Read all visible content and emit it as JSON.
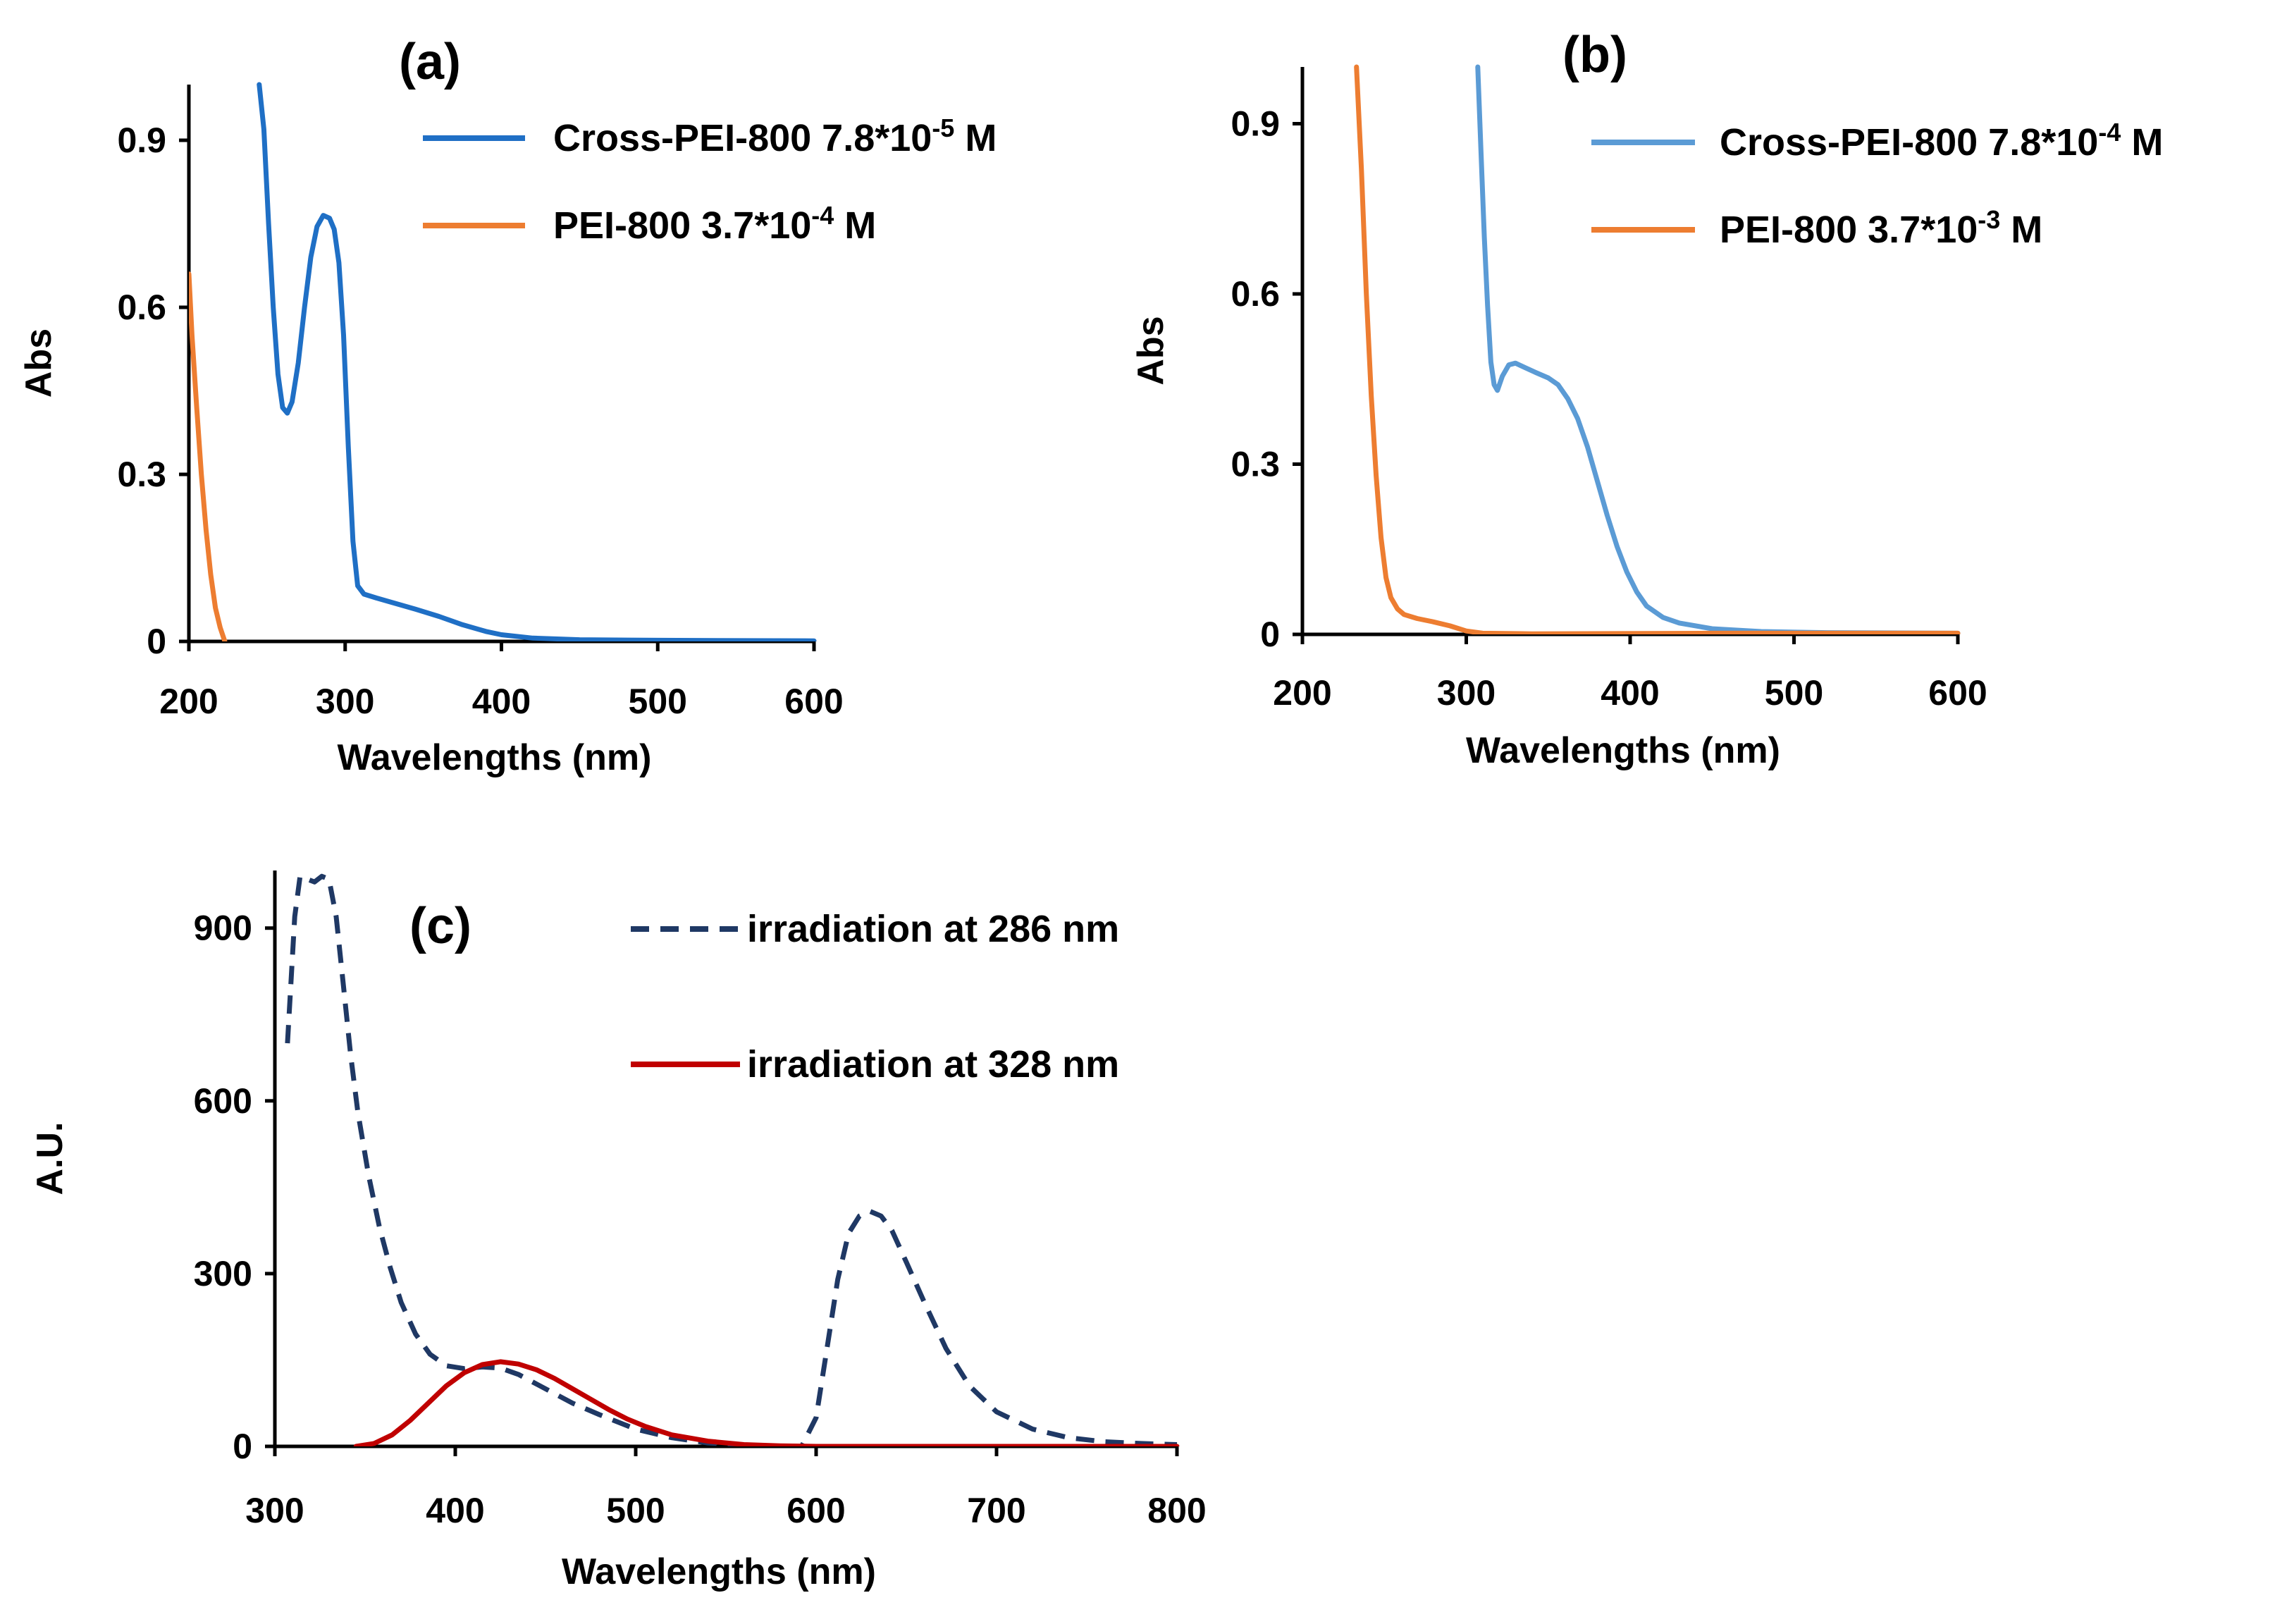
{
  "chart_data": [
    {
      "id": "a",
      "type": "line",
      "title": "(a)",
      "xlabel": "Wavelengths (nm)",
      "ylabel": "Abs",
      "xlim": [
        200,
        600
      ],
      "ylim": [
        0,
        1.0
      ],
      "x_ticks": [
        200,
        300,
        400,
        500,
        600
      ],
      "x_tick_labels": [
        "200",
        "300",
        "400",
        "500",
        "600"
      ],
      "y_ticks": [
        0,
        0.3,
        0.6,
        0.9
      ],
      "y_tick_labels": [
        "0",
        "0.3",
        "0.6",
        "0.9"
      ],
      "grid": false,
      "legend_position": "top-right",
      "series": [
        {
          "name": "Cross-PEI-800 7.8*10-5 M",
          "legend_label": {
            "base": "Cross-PEI-800 7.8*10",
            "sup": "-5",
            "suffix": " M"
          },
          "color": "#1f6fc5",
          "style": "solid",
          "points": [
            [
              245,
              1.0
            ],
            [
              248,
              0.92
            ],
            [
              251,
              0.75
            ],
            [
              254,
              0.6
            ],
            [
              257,
              0.48
            ],
            [
              260,
              0.42
            ],
            [
              263,
              0.41
            ],
            [
              266,
              0.43
            ],
            [
              270,
              0.5
            ],
            [
              274,
              0.6
            ],
            [
              278,
              0.69
            ],
            [
              282,
              0.745
            ],
            [
              286,
              0.765
            ],
            [
              290,
              0.76
            ],
            [
              293,
              0.74
            ],
            [
              296,
              0.68
            ],
            [
              299,
              0.55
            ],
            [
              302,
              0.35
            ],
            [
              305,
              0.18
            ],
            [
              308,
              0.1
            ],
            [
              312,
              0.085
            ],
            [
              320,
              0.078
            ],
            [
              330,
              0.07
            ],
            [
              345,
              0.058
            ],
            [
              360,
              0.045
            ],
            [
              375,
              0.03
            ],
            [
              390,
              0.018
            ],
            [
              400,
              0.012
            ],
            [
              420,
              0.006
            ],
            [
              450,
              0.003
            ],
            [
              500,
              0.002
            ],
            [
              600,
              0.001
            ]
          ]
        },
        {
          "name": "PEI-800 3.7*10-4 M",
          "legend_label": {
            "base": "PEI-800 3.7*10",
            "sup": "-4",
            "suffix": " M"
          },
          "color": "#ed7d31",
          "style": "solid",
          "points": [
            [
              200,
              0.66
            ],
            [
              202,
              0.55
            ],
            [
              205,
              0.42
            ],
            [
              208,
              0.3
            ],
            [
              211,
              0.2
            ],
            [
              214,
              0.12
            ],
            [
              217,
              0.06
            ],
            [
              220,
              0.025
            ],
            [
              223,
              0.0
            ]
          ]
        }
      ]
    },
    {
      "id": "b",
      "type": "line",
      "title": "(b)",
      "xlabel": "Wavelengths (nm)",
      "ylabel": "Abs",
      "xlim": [
        200,
        600
      ],
      "ylim": [
        0,
        1.0
      ],
      "x_ticks": [
        200,
        300,
        400,
        500,
        600
      ],
      "x_tick_labels": [
        "200",
        "300",
        "400",
        "500",
        "600"
      ],
      "y_ticks": [
        0,
        0.3,
        0.6,
        0.9
      ],
      "y_tick_labels": [
        "0",
        "0.3",
        "0.6",
        "0.9"
      ],
      "grid": false,
      "legend_position": "top-right",
      "series": [
        {
          "name": "Cross-PEI-800 7.8*10-4 M",
          "legend_label": {
            "base": "Cross-PEI-800 7.8*10",
            "sup": "-4",
            "suffix": " M"
          },
          "color": "#5b9bd5",
          "style": "solid",
          "points": [
            [
              307,
              1.0
            ],
            [
              309,
              0.85
            ],
            [
              311,
              0.7
            ],
            [
              313,
              0.58
            ],
            [
              315,
              0.48
            ],
            [
              317,
              0.44
            ],
            [
              319,
              0.43
            ],
            [
              322,
              0.455
            ],
            [
              326,
              0.475
            ],
            [
              330,
              0.478
            ],
            [
              336,
              0.47
            ],
            [
              342,
              0.462
            ],
            [
              350,
              0.452
            ],
            [
              356,
              0.44
            ],
            [
              362,
              0.415
            ],
            [
              368,
              0.38
            ],
            [
              374,
              0.33
            ],
            [
              380,
              0.27
            ],
            [
              386,
              0.21
            ],
            [
              392,
              0.155
            ],
            [
              398,
              0.11
            ],
            [
              404,
              0.075
            ],
            [
              410,
              0.05
            ],
            [
              420,
              0.03
            ],
            [
              430,
              0.02
            ],
            [
              450,
              0.01
            ],
            [
              480,
              0.005
            ],
            [
              520,
              0.003
            ],
            [
              600,
              0.002
            ]
          ]
        },
        {
          "name": "PEI-800 3.7*10-3 M",
          "legend_label": {
            "base": "PEI-800 3.7*10",
            "sup": "-3",
            "suffix": " M"
          },
          "color": "#ed7d31",
          "style": "solid",
          "points": [
            [
              233,
              1.0
            ],
            [
              236,
              0.82
            ],
            [
              239,
              0.6
            ],
            [
              242,
              0.42
            ],
            [
              245,
              0.28
            ],
            [
              248,
              0.17
            ],
            [
              251,
              0.1
            ],
            [
              254,
              0.065
            ],
            [
              258,
              0.045
            ],
            [
              262,
              0.035
            ],
            [
              270,
              0.028
            ],
            [
              280,
              0.022
            ],
            [
              290,
              0.015
            ],
            [
              300,
              0.006
            ],
            [
              310,
              0.002
            ],
            [
              340,
              0.001
            ],
            [
              450,
              0.002
            ],
            [
              520,
              0.002
            ],
            [
              600,
              0.002
            ]
          ]
        }
      ]
    },
    {
      "id": "c",
      "type": "line",
      "title": "(c)",
      "xlabel": "Wavelengths (nm)",
      "ylabel": "A.U.",
      "xlim": [
        300,
        800
      ],
      "ylim": [
        0,
        1000
      ],
      "x_ticks": [
        300,
        400,
        500,
        600,
        700,
        800
      ],
      "x_tick_labels": [
        "300",
        "400",
        "500",
        "600",
        "700",
        "800"
      ],
      "y_ticks": [
        0,
        300,
        600,
        900
      ],
      "y_tick_labels": [
        "0",
        "300",
        "600",
        "900"
      ],
      "grid": false,
      "legend_position": "top-right",
      "series": [
        {
          "name": "irradiation  at 286 nm",
          "legend_label": {
            "base": "irradiation  at 286 nm",
            "sup": "",
            "suffix": ""
          },
          "color": "#1f3864",
          "style": "dashed",
          "points": [
            [
              307,
              700
            ],
            [
              311,
              920
            ],
            [
              314,
              990
            ],
            [
              318,
              985
            ],
            [
              322,
              980
            ],
            [
              326,
              990
            ],
            [
              330,
              985
            ],
            [
              334,
              920
            ],
            [
              338,
              800
            ],
            [
              342,
              680
            ],
            [
              346,
              580
            ],
            [
              352,
              470
            ],
            [
              358,
              380
            ],
            [
              364,
              310
            ],
            [
              370,
              250
            ],
            [
              378,
              195
            ],
            [
              386,
              160
            ],
            [
              395,
              140
            ],
            [
              405,
              135
            ],
            [
              415,
              138
            ],
            [
              425,
              136
            ],
            [
              435,
              125
            ],
            [
              450,
              100
            ],
            [
              465,
              75
            ],
            [
              480,
              55
            ],
            [
              500,
              30
            ],
            [
              520,
              15
            ],
            [
              540,
              6
            ],
            [
              560,
              2
            ],
            [
              580,
              0
            ],
            [
              592,
              0
            ],
            [
              600,
              50
            ],
            [
              606,
              170
            ],
            [
              612,
              290
            ],
            [
              618,
              370
            ],
            [
              624,
              400
            ],
            [
              630,
              408
            ],
            [
              636,
              400
            ],
            [
              642,
              375
            ],
            [
              650,
              320
            ],
            [
              660,
              250
            ],
            [
              672,
              170
            ],
            [
              685,
              105
            ],
            [
              700,
              60
            ],
            [
              720,
              30
            ],
            [
              740,
              15
            ],
            [
              760,
              8
            ],
            [
              780,
              5
            ],
            [
              800,
              3
            ]
          ]
        },
        {
          "name": "irradiation  at 328 nm",
          "legend_label": {
            "base": "irradiation  at 328 nm",
            "sup": "",
            "suffix": ""
          },
          "color": "#c00000",
          "style": "solid",
          "points": [
            [
              345,
              0
            ],
            [
              355,
              5
            ],
            [
              365,
              20
            ],
            [
              375,
              45
            ],
            [
              385,
              75
            ],
            [
              395,
              105
            ],
            [
              405,
              128
            ],
            [
              415,
              142
            ],
            [
              425,
              147
            ],
            [
              435,
              143
            ],
            [
              445,
              133
            ],
            [
              455,
              118
            ],
            [
              465,
              100
            ],
            [
              475,
              82
            ],
            [
              485,
              64
            ],
            [
              495,
              48
            ],
            [
              505,
              35
            ],
            [
              520,
              20
            ],
            [
              540,
              9
            ],
            [
              560,
              3
            ],
            [
              580,
              1
            ],
            [
              600,
              0
            ],
            [
              800,
              0
            ]
          ]
        }
      ]
    }
  ]
}
